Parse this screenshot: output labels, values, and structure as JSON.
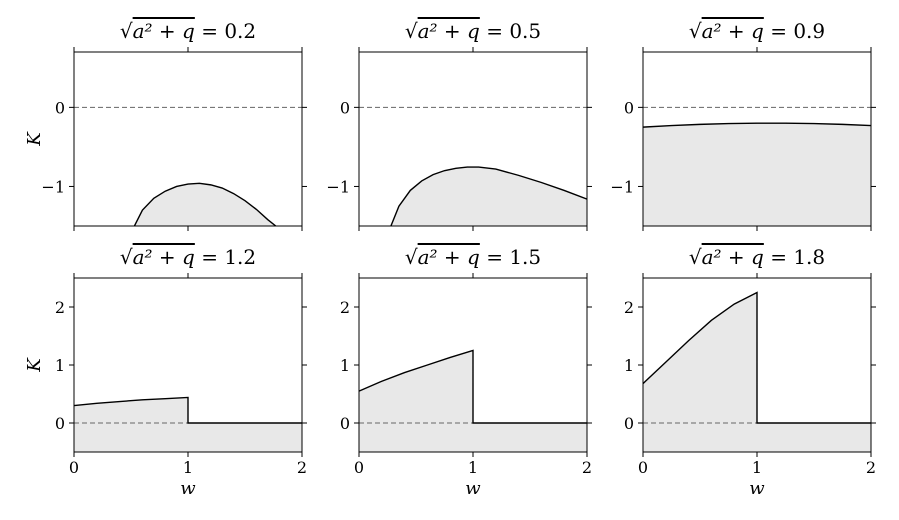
{
  "chart_data": [
    {
      "type": "area",
      "title": {
        "prefix": "√",
        "expr": "a² + q",
        "value": " = 0.2"
      },
      "xlabel": "",
      "ylabel": "K",
      "xlim": [
        0,
        2
      ],
      "ylim": [
        -1.5,
        0.7
      ],
      "xticks": [
        0,
        1,
        2
      ],
      "xtick_labels_shown": false,
      "yticks": [
        -1,
        0
      ],
      "ytick_labels": [
        "−1",
        "0"
      ],
      "dashed_zero_line": true,
      "x": [
        0.53,
        0.6,
        0.7,
        0.8,
        0.9,
        1.0,
        1.1,
        1.2,
        1.3,
        1.4,
        1.5,
        1.6,
        1.7,
        1.77
      ],
      "y": [
        -1.5,
        -1.3,
        -1.15,
        -1.06,
        -1.0,
        -0.97,
        -0.96,
        -0.98,
        -1.02,
        -1.09,
        -1.18,
        -1.29,
        -1.42,
        -1.5
      ],
      "fill_to": "bottom"
    },
    {
      "type": "area",
      "title": {
        "prefix": "√",
        "expr": "a² + q",
        "value": " = 0.5"
      },
      "xlabel": "",
      "ylabel": "",
      "xlim": [
        0,
        2
      ],
      "ylim": [
        -1.5,
        0.7
      ],
      "xticks": [
        0,
        1,
        2
      ],
      "xtick_labels_shown": false,
      "yticks": [
        -1,
        0
      ],
      "ytick_labels": [
        "−1",
        "0"
      ],
      "dashed_zero_line": true,
      "x": [
        0.28,
        0.35,
        0.45,
        0.55,
        0.65,
        0.75,
        0.85,
        0.95,
        1.05,
        1.2,
        1.4,
        1.6,
        1.8,
        2.0
      ],
      "y": [
        -1.5,
        -1.25,
        -1.05,
        -0.93,
        -0.85,
        -0.8,
        -0.77,
        -0.755,
        -0.755,
        -0.78,
        -0.86,
        -0.95,
        -1.05,
        -1.16
      ],
      "fill_to": "bottom"
    },
    {
      "type": "area",
      "title": {
        "prefix": "√",
        "expr": "a² + q",
        "value": " = 0.9"
      },
      "xlabel": "",
      "ylabel": "",
      "xlim": [
        0,
        2
      ],
      "ylim": [
        -1.5,
        0.7
      ],
      "xticks": [
        0,
        1,
        2
      ],
      "xtick_labels_shown": false,
      "yticks": [
        -1,
        0
      ],
      "ytick_labels": [
        "−1",
        "0"
      ],
      "dashed_zero_line": true,
      "x": [
        0,
        0.25,
        0.5,
        0.75,
        1.0,
        1.25,
        1.5,
        1.75,
        2.0
      ],
      "y": [
        -0.25,
        -0.23,
        -0.215,
        -0.205,
        -0.2,
        -0.2,
        -0.205,
        -0.215,
        -0.23
      ],
      "fill_to": "bottom"
    },
    {
      "type": "area",
      "title": {
        "prefix": "√",
        "expr": "a² + q",
        "value": " = 1.2"
      },
      "xlabel": "w",
      "ylabel": "K",
      "xlim": [
        0,
        2
      ],
      "ylim": [
        -0.5,
        2.5
      ],
      "xticks": [
        0,
        1,
        2
      ],
      "xtick_labels_shown": true,
      "xtick_labels": [
        "0",
        "1",
        "2"
      ],
      "yticks": [
        0,
        1,
        2
      ],
      "ytick_labels": [
        "0",
        "1",
        "2"
      ],
      "dashed_zero_line": true,
      "x": [
        0,
        0.2,
        0.4,
        0.6,
        0.8,
        1.0,
        1.0,
        2.0
      ],
      "y": [
        0.3,
        0.34,
        0.37,
        0.4,
        0.42,
        0.44,
        0,
        0
      ],
      "fill_to": "bottom"
    },
    {
      "type": "area",
      "title": {
        "prefix": "√",
        "expr": "a² + q",
        "value": " = 1.5"
      },
      "xlabel": "w",
      "ylabel": "",
      "xlim": [
        0,
        2
      ],
      "ylim": [
        -0.5,
        2.5
      ],
      "xticks": [
        0,
        1,
        2
      ],
      "xtick_labels_shown": true,
      "xtick_labels": [
        "0",
        "1",
        "2"
      ],
      "yticks": [
        0,
        1,
        2
      ],
      "ytick_labels": [
        "0",
        "1",
        "2"
      ],
      "dashed_zero_line": true,
      "x": [
        0,
        0.2,
        0.4,
        0.6,
        0.8,
        1.0,
        1.0,
        2.0
      ],
      "y": [
        0.55,
        0.72,
        0.87,
        1.0,
        1.13,
        1.25,
        0,
        0
      ],
      "fill_to": "bottom"
    },
    {
      "type": "area",
      "title": {
        "prefix": "√",
        "expr": "a² + q",
        "value": " = 1.8"
      },
      "xlabel": "w",
      "ylabel": "",
      "xlim": [
        0,
        2
      ],
      "ylim": [
        -0.5,
        2.5
      ],
      "xticks": [
        0,
        1,
        2
      ],
      "xtick_labels_shown": true,
      "xtick_labels": [
        "0",
        "1",
        "2"
      ],
      "yticks": [
        0,
        1,
        2
      ],
      "ytick_labels": [
        "0",
        "1",
        "2"
      ],
      "dashed_zero_line": true,
      "x": [
        0,
        0.2,
        0.4,
        0.6,
        0.8,
        1.0,
        1.0,
        2.0
      ],
      "y": [
        0.68,
        1.05,
        1.42,
        1.77,
        2.05,
        2.25,
        0,
        0
      ],
      "fill_to": "bottom"
    }
  ],
  "colors": {
    "fill": "#e8e8e8",
    "line": "#000000",
    "zero_line": "#666666"
  }
}
